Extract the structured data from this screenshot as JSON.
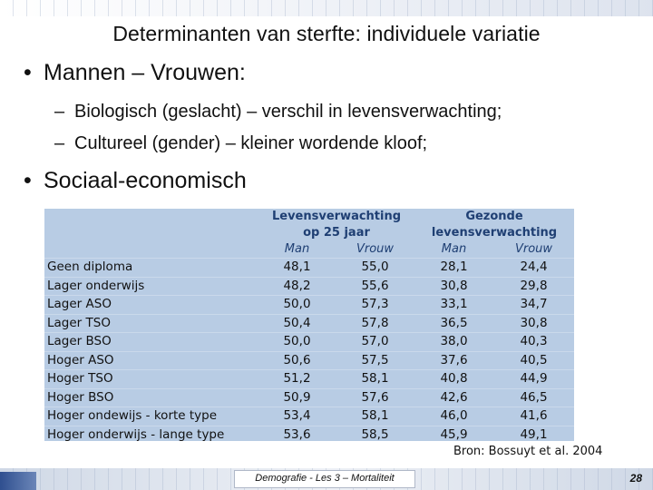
{
  "title": "Determinanten van sterfte: individuele variatie",
  "bullets": [
    {
      "text": "Mannen – Vrouwen:",
      "subitems": [
        "Biologisch (geslacht) – verschil in levensverwachting;",
        "Cultureel (gender) – kleiner wordende kloof;"
      ]
    },
    {
      "text": "Sociaal-economisch"
    }
  ],
  "bullet_symbol": "•",
  "dash_symbol": "–",
  "table": {
    "group_headers": [
      {
        "line1": "Levensverwachting",
        "line2": "op 25 jaar"
      },
      {
        "line1": "Gezonde",
        "line2": "levensverwachting"
      }
    ],
    "sub_headers": [
      "Man",
      "Vrouw",
      "Man",
      "Vrouw"
    ],
    "rows": [
      {
        "label": "Geen diploma",
        "values": [
          "48,1",
          "55,0",
          "28,1",
          "24,4"
        ]
      },
      {
        "label": "Lager onderwijs",
        "values": [
          "48,2",
          "55,6",
          "30,8",
          "29,8"
        ]
      },
      {
        "label": "Lager ASO",
        "values": [
          "50,0",
          "57,3",
          "33,1",
          "34,7"
        ]
      },
      {
        "label": "Lager TSO",
        "values": [
          "50,4",
          "57,8",
          "36,5",
          "30,8"
        ]
      },
      {
        "label": "Lager BSO",
        "values": [
          "50,0",
          "57,0",
          "38,0",
          "40,3"
        ]
      },
      {
        "label": "Hoger ASO",
        "values": [
          "50,6",
          "57,5",
          "37,6",
          "40,5"
        ]
      },
      {
        "label": "Hoger TSO",
        "values": [
          "51,2",
          "58,1",
          "40,8",
          "44,9"
        ]
      },
      {
        "label": "Hoger BSO",
        "values": [
          "50,9",
          "57,6",
          "42,6",
          "46,5"
        ]
      },
      {
        "label": "Hoger ondewijs - korte type",
        "values": [
          "53,4",
          "58,1",
          "46,0",
          "41,6"
        ]
      },
      {
        "label": "Hoger onderwijs - lange type",
        "values": [
          "53,6",
          "58,5",
          "45,9",
          "49,1"
        ]
      }
    ],
    "background_color": "#b8cce4",
    "header_color": "#1f3f73"
  },
  "source": "Bron: Bossuyt et al. 2004",
  "footer": {
    "center_text": "Demografie - Les 3 – Mortaliteit",
    "page_number": "28"
  }
}
